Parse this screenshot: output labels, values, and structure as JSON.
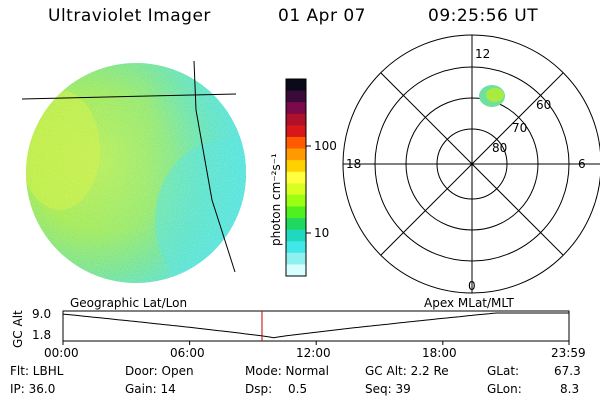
{
  "header": {
    "title": "Ultraviolet Imager",
    "date": "01 Apr 07",
    "time": "09:25:56 UT"
  },
  "colorbar": {
    "label": "photon cm⁻²s⁻¹",
    "ticks": [
      "100",
      "10"
    ],
    "colors": [
      "#0a0a1a",
      "#3a0a3a",
      "#7a0a4a",
      "#b0102a",
      "#d81818",
      "#ff5a00",
      "#ff9a00",
      "#ffd000",
      "#ffff40",
      "#d8ff20",
      "#9aff10",
      "#50f020",
      "#20d860",
      "#20d8c0",
      "#40e8e8",
      "#90f0f0",
      "#d8ffff"
    ]
  },
  "polar": {
    "mlt_labels": {
      "top": "12",
      "left": "18",
      "right": "6",
      "bottom": "0"
    },
    "lat_labels": [
      "60",
      "70",
      "80"
    ]
  },
  "timeline": {
    "left_label": "Geographic Lat/Lon",
    "right_label": "Apex MLat/MLT",
    "axis_title": "GC Alt",
    "y_ticks": [
      "9.0",
      "1.8"
    ],
    "x_ticks": [
      "00:00",
      "06:00",
      "12:00",
      "18:00",
      "23:59"
    ],
    "marker_time_hours": 9.43
  },
  "info": {
    "flt": "Flt: LBHL",
    "ip": "IP: 36.0",
    "door": "Door: Open",
    "gain": "Gain: 14",
    "mode": "Mode: Normal",
    "dsp_label": "Dsp:",
    "dsp_value": "0.5",
    "gc_alt": "GC Alt: 2.2 Re",
    "seq": "Seq: 39",
    "glat_label": "GLat:",
    "glat_value": "67.3",
    "glon_label": "GLon:",
    "glon_value": "8.3"
  },
  "colors": {
    "disk_green": "#9ae830",
    "disk_yellow": "#c8f028",
    "disk_cyan": "#40e0d8",
    "marker": "#cc0000"
  }
}
